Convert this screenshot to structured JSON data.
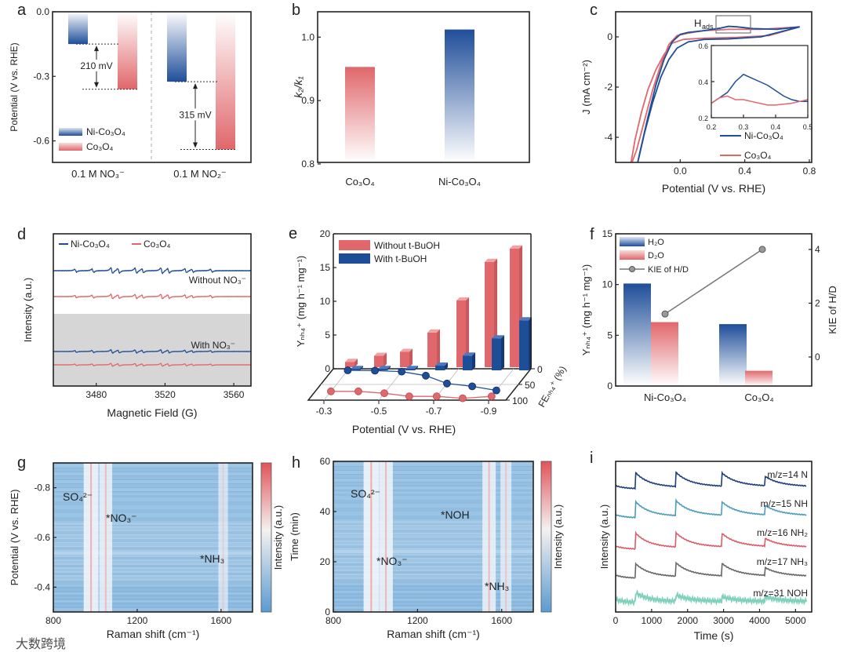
{
  "panel_labels": [
    "a",
    "b",
    "c",
    "d",
    "e",
    "f",
    "g",
    "h",
    "i"
  ],
  "watermark": "大数跨境",
  "colors": {
    "blue": "#1f4e99",
    "red": "#e0676b",
    "gray": "#777777",
    "shade": "#d6d6d6",
    "heat_base": "#86b6dd"
  },
  "chart_data": [
    {
      "panel": "a",
      "type": "bar",
      "ylabel": "Potential (V vs. RHE)",
      "ylim": [
        -0.7,
        0.0
      ],
      "yticks": [
        0.0,
        -0.3,
        -0.6
      ],
      "ytick_labels": [
        "0.0",
        "-0.3",
        "-0.6"
      ],
      "categories": [
        "0.1 M NO₃⁻",
        "0.1 M NO₂⁻"
      ],
      "series": [
        {
          "name": "Ni-Co₃O₄",
          "values": [
            -0.15,
            -0.325
          ]
        },
        {
          "name": "Co₃O₄",
          "values": [
            -0.36,
            -0.64
          ]
        }
      ],
      "annotations": [
        "210 mV",
        "315 mV"
      ]
    },
    {
      "panel": "b",
      "type": "bar",
      "ylabel": "k₂/k₁",
      "ylim": [
        0.8,
        1.04
      ],
      "yticks": [
        0.8,
        0.9,
        1.0
      ],
      "ytick_labels": [
        "0.8",
        "0.9",
        "1.0"
      ],
      "categories": [
        "Co₃O₄",
        "Ni-Co₃O₄"
      ],
      "values": [
        0.953,
        1.012
      ]
    },
    {
      "panel": "c",
      "type": "line",
      "xlabel": "Potential (V vs. RHE)",
      "ylabel": "J (mA cm⁻²)",
      "xlim": [
        -0.4,
        0.8
      ],
      "ylim": [
        -5,
        1
      ],
      "xticks": [
        0.0,
        0.4,
        0.8
      ],
      "xtick_labels": [
        "0.0",
        "0.4",
        "0.8"
      ],
      "yticks": [
        0,
        -2,
        -4
      ],
      "ytick_labels": [
        "0",
        "-2",
        "-4"
      ],
      "annotation_main": "H",
      "annotation_sub": "ads",
      "series": [
        {
          "name": "Ni-Co₃O₄",
          "x": [
            0.74,
            0.6,
            0.45,
            0.35,
            0.3,
            0.25,
            0.15,
            0.05,
            0.0,
            -0.05,
            -0.1,
            -0.15,
            -0.2,
            -0.25,
            -0.27,
            -0.22,
            -0.17,
            -0.12,
            -0.07,
            -0.02,
            0.05,
            0.15,
            0.3,
            0.5,
            0.74
          ],
          "y": [
            0.4,
            0.3,
            0.33,
            0.4,
            0.42,
            0.35,
            0.25,
            0.18,
            0.1,
            -0.2,
            -0.9,
            -1.9,
            -3.2,
            -4.6,
            -5.2,
            -3.8,
            -2.6,
            -1.6,
            -0.9,
            -0.45,
            -0.2,
            -0.1,
            -0.08,
            0.0,
            0.4
          ]
        },
        {
          "name": "Co₃O₄",
          "x": [
            0.74,
            0.5,
            0.3,
            0.15,
            0.05,
            -0.02,
            -0.07,
            -0.12,
            -0.17,
            -0.22,
            -0.27,
            -0.31,
            -0.28,
            -0.24,
            -0.2,
            -0.15,
            -0.1,
            -0.05,
            0.02,
            0.15,
            0.35,
            0.55,
            0.74
          ],
          "y": [
            0.4,
            0.3,
            0.3,
            0.25,
            0.15,
            0.05,
            -0.3,
            -1.1,
            -2.1,
            -3.3,
            -4.5,
            -5.2,
            -4.1,
            -3.0,
            -2.1,
            -1.3,
            -0.7,
            -0.25,
            -0.1,
            -0.05,
            -0.02,
            0.05,
            0.4
          ]
        }
      ],
      "inset": {
        "xlim": [
          0.2,
          0.5
        ],
        "ylim": [
          0.2,
          0.6
        ],
        "xticks": [
          0.2,
          0.3,
          0.4,
          0.5
        ],
        "xtick_labels": [
          "0.2",
          "0.3",
          "0.4",
          "0.5"
        ],
        "yticks": [
          0.2,
          0.4,
          0.6
        ],
        "ytick_labels": [
          "0.2",
          "0.4",
          "0.6"
        ],
        "x": [
          0.2,
          0.225,
          0.25,
          0.275,
          0.3,
          0.325,
          0.35,
          0.375,
          0.4,
          0.425,
          0.45,
          0.475,
          0.5
        ],
        "series": [
          {
            "name": "Ni-Co₃O₄",
            "y": [
              0.28,
              0.31,
              0.34,
              0.4,
              0.44,
              0.42,
              0.4,
              0.38,
              0.35,
              0.32,
              0.3,
              0.29,
              0.29
            ]
          },
          {
            "name": "Co₃O₄",
            "y": [
              0.28,
              0.31,
              0.32,
              0.3,
              0.3,
              0.29,
              0.28,
              0.27,
              0.27,
              0.275,
              0.28,
              0.29,
              0.3
            ]
          }
        ]
      }
    },
    {
      "panel": "d",
      "type": "line",
      "xlabel": "Magnetic Field (G)",
      "ylabel": "Intensity (a.u.)",
      "xlim": [
        3455,
        3570
      ],
      "xticks": [
        3480,
        3520,
        3560
      ],
      "xtick_labels": [
        "3480",
        "3520",
        "3560"
      ],
      "legend": [
        "Ni-Co₃O₄",
        "Co₃O₄"
      ],
      "conditions": [
        "Without NO₃⁻",
        "With NO₃⁻"
      ],
      "line_positions_G": [
        3468,
        3478,
        3489,
        3493,
        3503,
        3507,
        3518,
        3522,
        3532,
        3536,
        3547
      ],
      "line_amplitudes": [
        0.5,
        0.6,
        1.0,
        0.8,
        0.9,
        0.7,
        1.0,
        0.8,
        0.7,
        0.5,
        0.5
      ],
      "traces": [
        {
          "material": "Ni-Co₃O₄",
          "condition": "Without NO₃⁻",
          "relative_amplitude": 1.0
        },
        {
          "material": "Co₃O₄",
          "condition": "Without NO₃⁻",
          "relative_amplitude": 0.8
        },
        {
          "material": "Ni-Co₃O₄",
          "condition": "With NO₃⁻",
          "relative_amplitude": 0.6
        },
        {
          "material": "Co₃O₄",
          "condition": "With NO₃⁻",
          "relative_amplitude": 0.5
        }
      ]
    },
    {
      "panel": "e",
      "type": "bar",
      "xlabel": "Potential (V vs. RHE)",
      "ylabel": "Yₙₕ₄⁺ (mg h⁻¹ mg⁻¹)",
      "zlabel": "FEₙₕ₄⁺ (%)",
      "ylim": [
        0,
        20
      ],
      "yticks": [
        0,
        5,
        10,
        15,
        20
      ],
      "ytick_labels": [
        "0",
        "5",
        "10",
        "15",
        "20"
      ],
      "xticks": [
        -0.3,
        -0.5,
        -0.7,
        -0.9
      ],
      "xtick_labels": [
        "-0.3",
        "-0.5",
        "-0.7",
        "-0.9"
      ],
      "zticks": [
        0,
        50,
        100
      ],
      "ztick_labels": [
        "0",
        "50",
        "100"
      ],
      "potentials": [
        -0.3,
        -0.4,
        -0.5,
        -0.6,
        -0.7,
        -0.8,
        -0.9
      ],
      "series": [
        {
          "name": "Without t-BuOH",
          "yield": [
            0.8,
            1.7,
            2.3,
            5.2,
            10.0,
            15.8,
            17.8
          ],
          "fe": [
            72,
            72,
            78,
            88,
            88,
            94,
            88
          ]
        },
        {
          "name": "With t-BuOH",
          "yield": [
            0.2,
            0.2,
            0.2,
            0.7,
            2.2,
            4.8,
            7.5
          ],
          "fe": [
            5,
            6,
            9,
            22,
            47,
            56,
            69
          ]
        }
      ]
    },
    {
      "panel": "f",
      "type": "bar",
      "ylabel": "Yₙₕ₄⁺ (mg h⁻¹ mg⁻¹)",
      "y2label": "KIE of H/D",
      "ylim": [
        0,
        15
      ],
      "yticks": [
        0,
        5,
        10,
        15
      ],
      "ytick_labels": [
        "0",
        "5",
        "10",
        "15"
      ],
      "y2lim": [
        -1.08,
        4.58
      ],
      "y2ticks": [
        0,
        2,
        4
      ],
      "y2tick_labels": [
        "0",
        "2",
        "4"
      ],
      "categories": [
        "Ni-Co₃O₄",
        "Co₃O₄"
      ],
      "series": [
        {
          "name": "H₂O",
          "values": [
            10.1,
            6.1
          ]
        },
        {
          "name": "D₂O",
          "values": [
            6.3,
            1.5
          ]
        },
        {
          "name": "KIE of H/D",
          "values": [
            1.6,
            4.0
          ],
          "type": "line"
        }
      ]
    },
    {
      "panel": "g",
      "type": "heatmap",
      "xlabel": "Raman shift (cm⁻¹)",
      "ylabel": "Potential (V vs. RHE)",
      "colorbar_label": "Intensity (a.u.)",
      "xlim": [
        800,
        1750
      ],
      "ylim": [
        -0.3,
        -0.9
      ],
      "xticks": [
        800,
        1200,
        1600
      ],
      "xtick_labels": [
        "800",
        "1200",
        "1600"
      ],
      "yticks": [
        -0.8,
        -0.6,
        -0.4
      ],
      "ytick_labels": [
        "-0.8",
        "-0.6",
        "-0.4"
      ],
      "peaks": [
        {
          "label": "SO₄²⁻",
          "position": 980,
          "intensity": 0.9
        },
        {
          "label": "*NO₃⁻",
          "position": 1050,
          "intensity": 0.7
        },
        {
          "label": "*NH₃",
          "position": 1610,
          "intensity": 0.35
        }
      ]
    },
    {
      "panel": "h",
      "type": "heatmap",
      "xlabel": "Raman shift (cm⁻¹)",
      "ylabel": "Time (min)",
      "colorbar_label": "Intensity (a.u.)",
      "xlim": [
        800,
        1750
      ],
      "ylim": [
        0,
        60
      ],
      "xticks": [
        800,
        1200,
        1600
      ],
      "xtick_labels": [
        "800",
        "1200",
        "1600"
      ],
      "yticks": [
        0,
        20,
        40,
        60
      ],
      "ytick_labels": [
        "0",
        "20",
        "40",
        "60"
      ],
      "peaks": [
        {
          "label": "SO₄²⁻",
          "position": 980,
          "intensity": 0.95
        },
        {
          "label": "*NO₃⁻",
          "position": 1050,
          "intensity": 0.8
        },
        {
          "label": "*NOH",
          "position": 1540,
          "intensity": 0.75
        },
        {
          "label": "*NH₃",
          "position": 1620,
          "intensity": 0.5
        }
      ]
    },
    {
      "panel": "i",
      "type": "line",
      "xlabel": "Time (s)",
      "ylabel": "Intensity (a.u.)",
      "xlim": [
        0,
        5450
      ],
      "xticks": [
        0,
        1000,
        2000,
        3000,
        4000,
        5000
      ],
      "xtick_labels": [
        "0",
        "1000",
        "2000",
        "3000",
        "4000",
        "5000"
      ],
      "spike_times_s": [
        560,
        1680,
        2950,
        4150
      ],
      "series": [
        {
          "name": "m/z=14 N",
          "spike": [
            1.0,
            0.9,
            0.85,
            0.6
          ]
        },
        {
          "name": "m/z=15 NH",
          "spike": [
            1.0,
            0.95,
            0.85,
            0.6
          ]
        },
        {
          "name": "m/z=16 NH₂",
          "spike": [
            1.0,
            0.9,
            0.85,
            0.5
          ]
        },
        {
          "name": "m/z=17 NH₃",
          "spike": [
            0.9,
            0.85,
            0.8,
            0.5
          ]
        },
        {
          "name": "m/z=31 NOH",
          "spike": [
            0.6,
            0.4,
            0.3,
            0.3
          ]
        }
      ]
    }
  ]
}
